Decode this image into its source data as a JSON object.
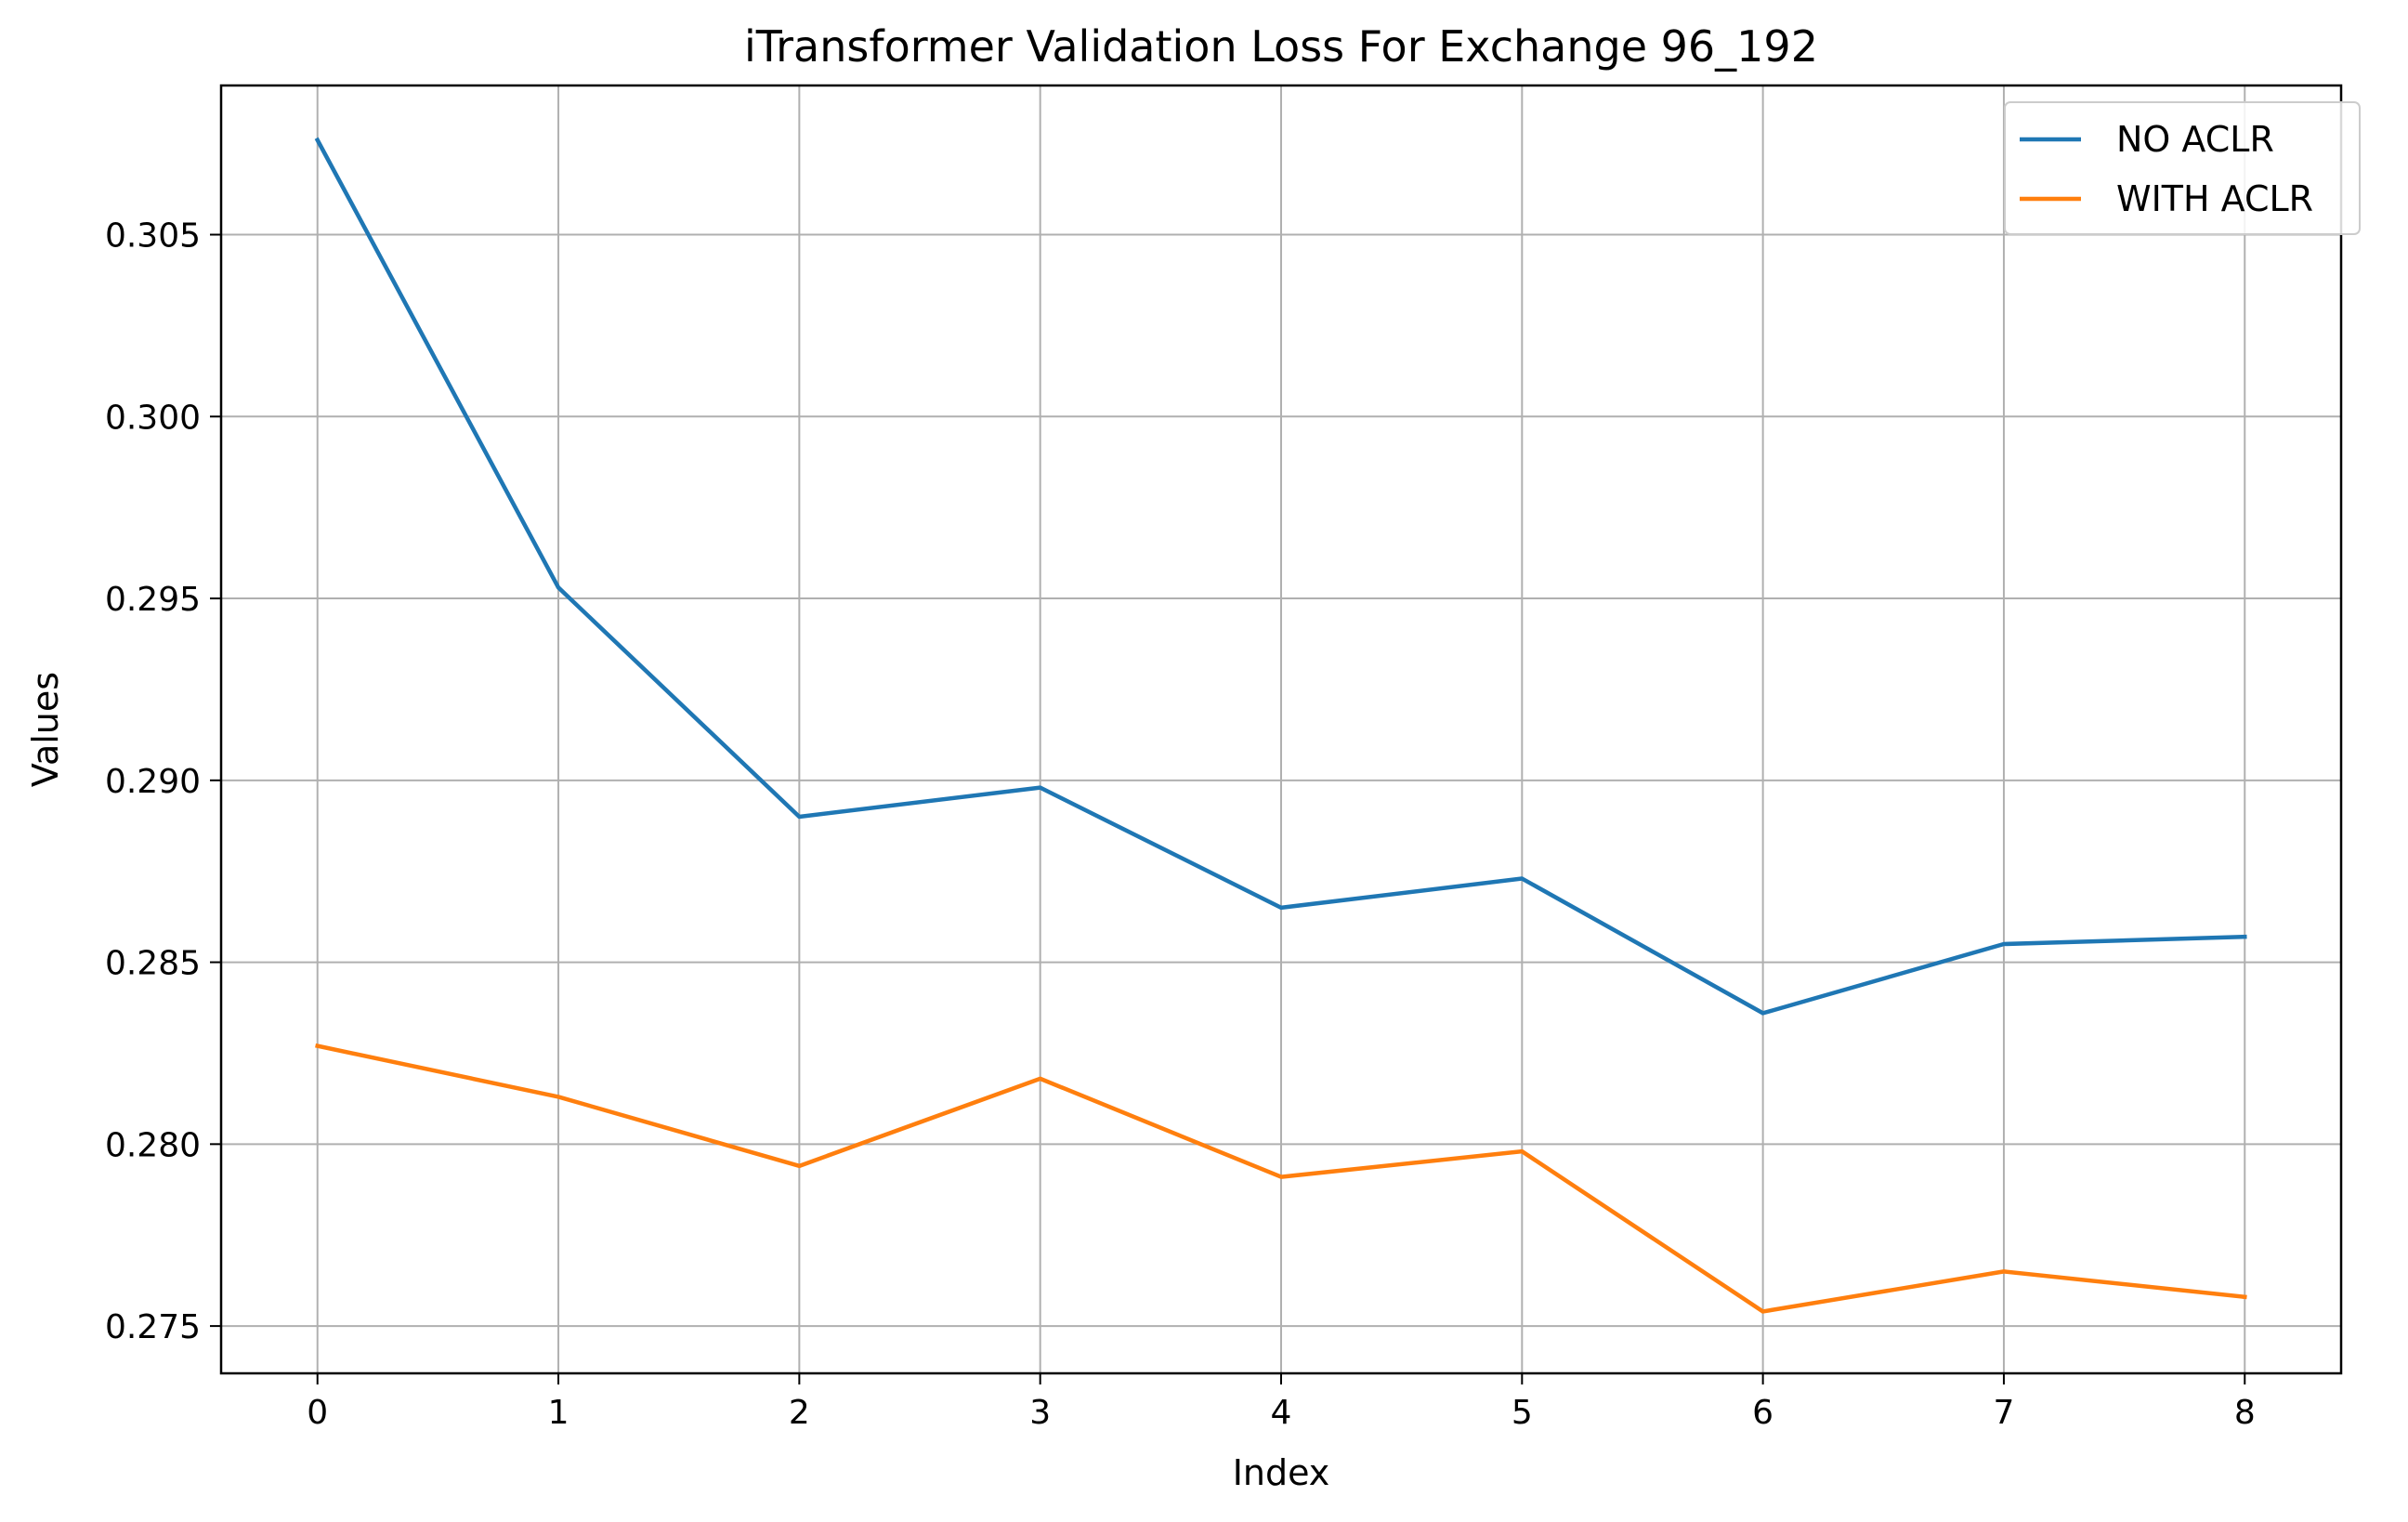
{
  "chart_data": {
    "type": "line",
    "title": "iTransformer Validation Loss For Exchange 96_192",
    "xlabel": "Index",
    "ylabel": "Values",
    "x": [
      0,
      1,
      2,
      3,
      4,
      5,
      6,
      7,
      8
    ],
    "xticks": [
      "0",
      "1",
      "2",
      "3",
      "4",
      "5",
      "6",
      "7",
      "8"
    ],
    "yticks": [
      "0.275",
      "0.280",
      "0.285",
      "0.290",
      "0.295",
      "0.300",
      "0.305"
    ],
    "xlim": [
      -0.4,
      8.4
    ],
    "ylim": [
      0.2737,
      0.3091
    ],
    "grid": true,
    "legend_position": "top-right",
    "series": [
      {
        "name": "NO ACLR",
        "color": "#1f77b4",
        "values": [
          0.3076,
          0.2953,
          0.289,
          0.2898,
          0.2865,
          0.2873,
          0.2836,
          0.2855,
          0.2857
        ]
      },
      {
        "name": "WITH ACLR",
        "color": "#ff7f0e",
        "values": [
          0.2827,
          0.2813,
          0.2794,
          0.2818,
          0.2791,
          0.2798,
          0.2754,
          0.2765,
          0.2758
        ]
      }
    ]
  }
}
